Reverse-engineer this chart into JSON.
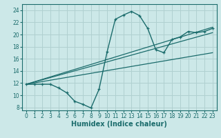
{
  "xlabel": "Humidex (Indice chaleur)",
  "ylabel": "",
  "xlim": [
    -0.5,
    23.5
  ],
  "ylim": [
    7.5,
    25
  ],
  "yticks": [
    8,
    10,
    12,
    14,
    16,
    18,
    20,
    22,
    24
  ],
  "xticks": [
    0,
    1,
    2,
    3,
    4,
    5,
    6,
    7,
    8,
    9,
    10,
    11,
    12,
    13,
    14,
    15,
    16,
    17,
    18,
    19,
    20,
    21,
    22,
    23
  ],
  "bg_color": "#cce8e8",
  "grid_color": "#b0d0d0",
  "line_color": "#1a6b6b",
  "curve1_x": [
    0,
    1,
    2,
    3,
    4,
    5,
    6,
    7,
    8,
    9,
    10,
    11,
    12,
    13,
    14,
    15,
    16,
    17,
    18,
    19,
    20,
    21,
    22,
    23
  ],
  "curve1_y": [
    11.8,
    11.8,
    11.8,
    11.8,
    11.2,
    10.4,
    9.0,
    8.5,
    7.9,
    11.0,
    17.2,
    22.5,
    23.2,
    23.8,
    23.1,
    21.0,
    17.5,
    17.0,
    19.2,
    19.6,
    20.5,
    20.3,
    20.5,
    21.0
  ],
  "line1_x": [
    0,
    23
  ],
  "line1_y": [
    11.8,
    17.0
  ],
  "line2_x": [
    0,
    23
  ],
  "line2_y": [
    11.8,
    21.2
  ],
  "line3_x": [
    0,
    23
  ],
  "line3_y": [
    11.8,
    20.3
  ],
  "tick_fontsize": 5.5,
  "label_fontsize": 7.0
}
